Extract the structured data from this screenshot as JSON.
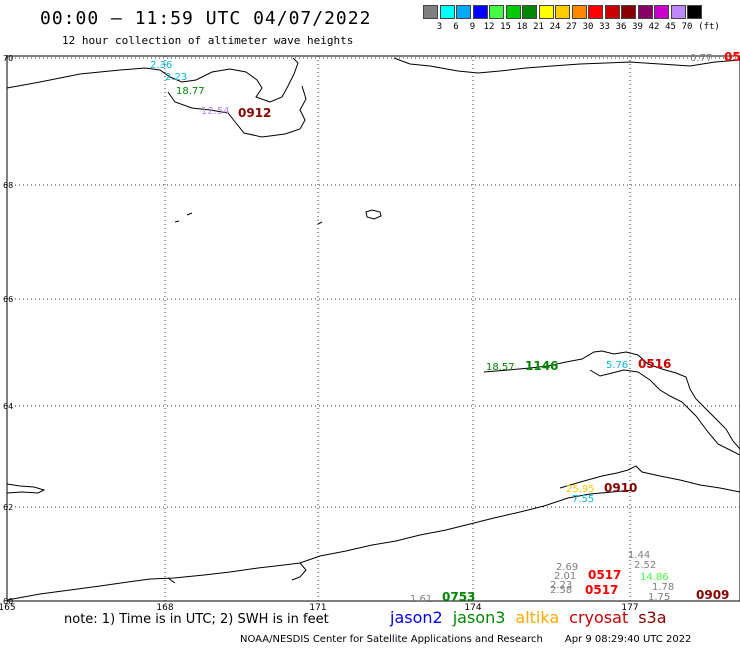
{
  "header": {
    "title": "00:00 – 11:59 UTC 04/07/2022",
    "subtitle": "12 hour collection of altimeter wave heights"
  },
  "legend": {
    "colors": [
      "#7f7f7f",
      "#00ffff",
      "#00aaff",
      "#0000ff",
      "#44ff44",
      "#00cc00",
      "#008800",
      "#ffff00",
      "#ffcc00",
      "#ff8800",
      "#ff0000",
      "#cc0000",
      "#880000",
      "#880066",
      "#cc00cc",
      "#bb88ff",
      "#000000"
    ],
    "values": [
      "3",
      "6",
      "9",
      "12",
      "15",
      "18",
      "21",
      "24",
      "27",
      "30",
      "33",
      "36",
      "39",
      "42",
      "45",
      "70"
    ],
    "unit": "(ft)"
  },
  "axes": {
    "lat_labels": [
      "70",
      "68",
      "66",
      "64",
      "62",
      "60"
    ],
    "lon_labels": [
      "165",
      "168",
      "171",
      "174",
      "177"
    ]
  },
  "map_labels": [
    {
      "text": "2.36",
      "color": "#00bbdd",
      "big": false
    },
    {
      "text": "2.23",
      "color": "#00bbdd",
      "big": false
    },
    {
      "text": "18.77",
      "color": "#008800",
      "big": false
    },
    {
      "text": "12.54",
      "color": "#bb88ff",
      "big": false
    },
    {
      "text": "0912",
      "color": "#880000",
      "big": true
    },
    {
      "text": "0.77",
      "color": "#7f7f7f",
      "big": false
    },
    {
      "text": "05",
      "color": "#ff0000",
      "big": true
    },
    {
      "text": "18.57",
      "color": "#008800",
      "big": false
    },
    {
      "text": "1146",
      "color": "#008800",
      "big": true
    },
    {
      "text": "5.76",
      "color": "#00bbdd",
      "big": false
    },
    {
      "text": "0516",
      "color": "#cc0000",
      "big": true
    },
    {
      "text": "25.95",
      "color": "#ffcc00",
      "big": false
    },
    {
      "text": "7.55",
      "color": "#00bbdd",
      "big": false
    },
    {
      "text": "0910",
      "color": "#880000",
      "big": true
    },
    {
      "text": "1.44",
      "color": "#7f7f7f",
      "big": false
    },
    {
      "text": "2.69",
      "color": "#7f7f7f",
      "big": false
    },
    {
      "text": "2.52",
      "color": "#7f7f7f",
      "big": false
    },
    {
      "text": "2.01",
      "color": "#7f7f7f",
      "big": false
    },
    {
      "text": "0517",
      "color": "#ff0000",
      "big": true
    },
    {
      "text": "14.86",
      "color": "#44ff44",
      "big": false
    },
    {
      "text": "2.23",
      "color": "#7f7f7f",
      "big": false
    },
    {
      "text": "1.78",
      "color": "#7f7f7f",
      "big": false
    },
    {
      "text": "2.58",
      "color": "#7f7f7f",
      "big": false
    },
    {
      "text": "0517",
      "color": "#ff0000",
      "big": true
    },
    {
      "text": "1.75",
      "color": "#7f7f7f",
      "big": false
    },
    {
      "text": "0909",
      "color": "#880000",
      "big": true
    },
    {
      "text": "1.61",
      "color": "#7f7f7f",
      "big": false
    },
    {
      "text": "0753",
      "color": "#008800",
      "big": true
    }
  ],
  "footer": {
    "note": "note: 1) Time is in UTC; 2) SWH is in feet",
    "missions": [
      {
        "name": "jason2",
        "color": "#0000ff"
      },
      {
        "name": "jason3",
        "color": "#008800"
      },
      {
        "name": "altika",
        "color": "#ffaa00"
      },
      {
        "name": "cryosat",
        "color": "#cc0000"
      },
      {
        "name": "s3a",
        "color": "#880000"
      }
    ],
    "credit": "NOAA/NESDIS Center for Satellite Applications and Research",
    "generated": "Apr  9 08:29:40 UTC 2022"
  }
}
